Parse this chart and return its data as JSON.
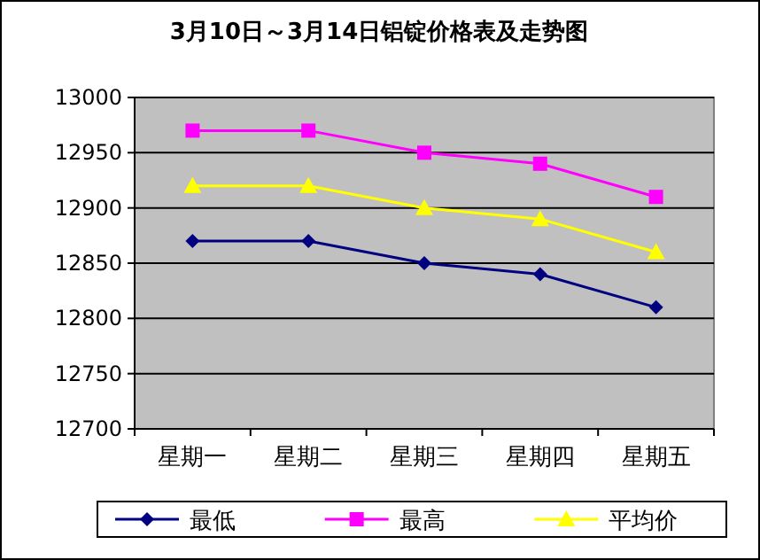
{
  "chart_data": {
    "type": "line",
    "title": "3月10日～3月14日铝锭价格表及走势图",
    "categories": [
      "星期一",
      "星期二",
      "星期三",
      "星期四",
      "星期五"
    ],
    "series": [
      {
        "name": "最低",
        "color": "#000080",
        "marker": "diamond",
        "values": [
          12870,
          12870,
          12850,
          12840,
          12810
        ]
      },
      {
        "name": "最高",
        "color": "#ff00ff",
        "marker": "square",
        "values": [
          12970,
          12970,
          12950,
          12940,
          12910
        ]
      },
      {
        "name": "平均价",
        "color": "#ffff00",
        "marker": "triangle",
        "values": [
          12920,
          12920,
          12900,
          12890,
          12860
        ]
      }
    ],
    "ylim": [
      12700,
      13000
    ],
    "yticks": [
      12700,
      12750,
      12800,
      12850,
      12900,
      12950,
      13000
    ],
    "grid": "y",
    "legend": "bottom"
  }
}
